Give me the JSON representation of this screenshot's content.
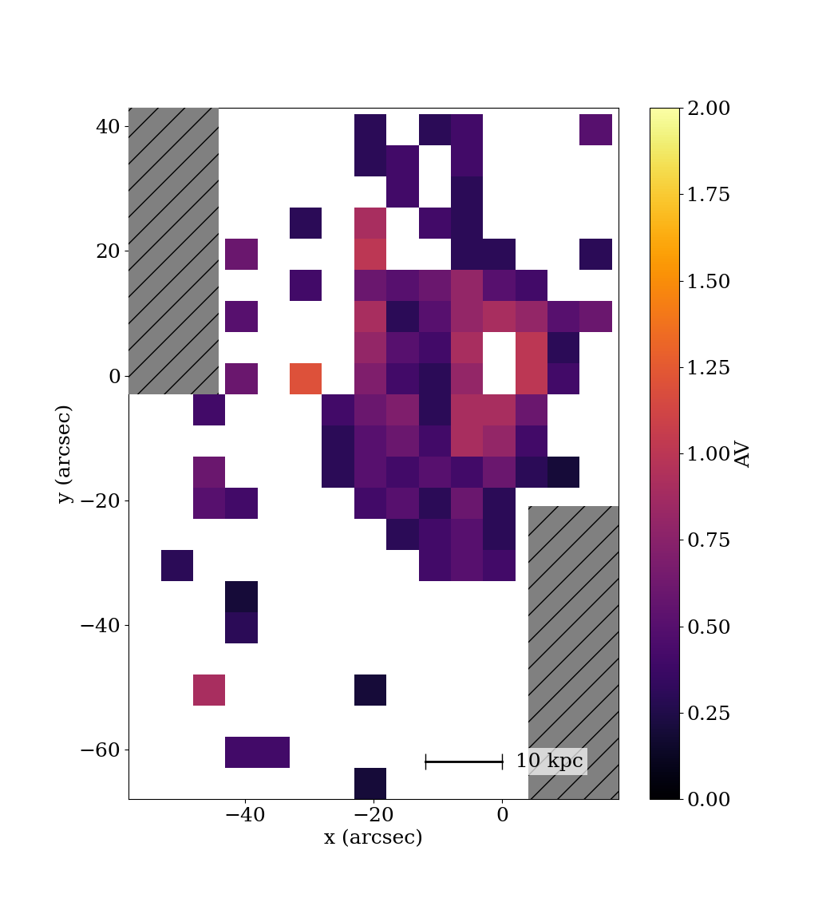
{
  "chart_data": {
    "type": "heatmap",
    "xlabel": "x (arcsec)",
    "ylabel": "y (arcsec)",
    "xlim": [
      -58,
      18
    ],
    "ylim": [
      -68,
      43
    ],
    "xticks": [
      {
        "value": -40,
        "label": "−40"
      },
      {
        "value": -20,
        "label": "−20"
      },
      0
    ],
    "yticks": [
      {
        "value": -60,
        "label": "−60"
      },
      {
        "value": -40,
        "label": "−40"
      },
      {
        "value": -20,
        "label": "−20"
      },
      0,
      20,
      40
    ],
    "x_edges": [
      -58,
      -53,
      -48,
      -43,
      -38,
      -33,
      -28,
      -23,
      -18,
      -13,
      -8,
      -3,
      2,
      7,
      12,
      17
    ],
    "y_edges": [
      -68,
      -63,
      -58,
      -53,
      -48,
      -43,
      -38,
      -33,
      -28,
      -23,
      -18,
      -13,
      -8,
      -3,
      2,
      7,
      12,
      17,
      22,
      27,
      32,
      37,
      42
    ],
    "cells": [
      [
        null,
        null,
        null,
        null,
        null,
        null,
        null,
        0.2,
        null,
        null,
        null,
        null,
        null,
        null,
        null
      ],
      [
        null,
        null,
        null,
        0.4,
        0.4,
        null,
        null,
        null,
        null,
        null,
        null,
        null,
        null,
        null,
        null
      ],
      [
        null,
        null,
        null,
        null,
        null,
        null,
        null,
        null,
        null,
        null,
        null,
        null,
        null,
        null,
        null
      ],
      [
        null,
        null,
        0.9,
        null,
        null,
        null,
        null,
        0.2,
        null,
        null,
        null,
        null,
        null,
        null,
        null
      ],
      [
        null,
        null,
        null,
        null,
        null,
        null,
        null,
        null,
        null,
        null,
        null,
        null,
        null,
        null,
        null
      ],
      [
        null,
        null,
        null,
        0.3,
        null,
        null,
        null,
        null,
        null,
        null,
        null,
        null,
        null,
        null,
        null
      ],
      [
        null,
        null,
        null,
        0.2,
        null,
        null,
        null,
        null,
        null,
        null,
        null,
        null,
        null,
        null,
        null
      ],
      [
        null,
        0.3,
        null,
        null,
        null,
        null,
        null,
        null,
        null,
        0.4,
        0.5,
        0.4,
        null,
        null,
        null
      ],
      [
        null,
        null,
        null,
        null,
        null,
        null,
        null,
        null,
        0.3,
        0.4,
        0.5,
        0.3,
        null,
        null,
        null
      ],
      [
        null,
        null,
        0.5,
        0.4,
        null,
        null,
        null,
        0.4,
        0.5,
        0.3,
        0.6,
        0.3,
        null,
        null,
        null
      ],
      [
        null,
        null,
        0.6,
        null,
        null,
        null,
        0.3,
        0.5,
        0.4,
        0.5,
        0.4,
        0.6,
        0.3,
        0.2,
        null
      ],
      [
        null,
        null,
        null,
        null,
        null,
        null,
        0.3,
        0.5,
        0.6,
        0.4,
        0.9,
        0.8,
        0.4,
        null,
        null
      ],
      [
        null,
        null,
        0.4,
        null,
        null,
        null,
        0.4,
        0.6,
        0.7,
        0.3,
        0.9,
        0.9,
        0.6,
        null,
        null
      ],
      [
        null,
        null,
        null,
        0.6,
        null,
        1.2,
        null,
        0.7,
        0.4,
        0.3,
        0.8,
        null,
        1.0,
        0.4,
        null
      ],
      [
        null,
        null,
        null,
        null,
        null,
        null,
        null,
        0.8,
        0.5,
        0.4,
        0.9,
        null,
        1.0,
        0.3,
        null
      ],
      [
        null,
        null,
        null,
        0.5,
        null,
        null,
        null,
        0.9,
        0.3,
        0.5,
        0.8,
        0.9,
        0.8,
        0.5,
        0.6
      ],
      [
        null,
        null,
        null,
        null,
        null,
        0.4,
        null,
        0.6,
        0.5,
        0.6,
        0.8,
        0.5,
        0.4,
        null,
        null
      ],
      [
        null,
        null,
        null,
        0.6,
        null,
        null,
        null,
        1.0,
        null,
        null,
        0.3,
        0.3,
        null,
        null,
        0.3
      ],
      [
        null,
        null,
        null,
        null,
        null,
        0.3,
        null,
        0.9,
        null,
        0.4,
        0.3,
        null,
        null,
        null,
        null
      ],
      [
        null,
        null,
        null,
        null,
        null,
        null,
        null,
        null,
        0.4,
        null,
        0.3,
        null,
        null,
        null,
        null
      ],
      [
        null,
        null,
        null,
        null,
        null,
        null,
        null,
        0.3,
        0.4,
        null,
        0.4,
        null,
        null,
        null,
        null
      ],
      [
        null,
        null,
        null,
        null,
        null,
        null,
        null,
        0.3,
        null,
        0.3,
        0.4,
        null,
        null,
        null,
        0.5
      ]
    ],
    "masked": [
      {
        "x": [
          -58,
          -44
        ],
        "y": [
          -3,
          43
        ]
      },
      {
        "x": [
          4,
          18
        ],
        "y": [
          -68,
          -21
        ]
      }
    ],
    "scale_bar": {
      "text": "10 kpc",
      "x": [
        -12,
        0
      ],
      "y": -62
    },
    "colorbar": {
      "label": "AV",
      "range": [
        0,
        2
      ],
      "ticks": [
        {
          "value": 0,
          "label": "0.00"
        },
        {
          "value": 0.25,
          "label": "0.25"
        },
        {
          "value": 0.5,
          "label": "0.50"
        },
        {
          "value": 0.75,
          "label": "0.75"
        },
        {
          "value": 1,
          "label": "1.00"
        },
        {
          "value": 1.25,
          "label": "1.25"
        },
        {
          "value": 1.5,
          "label": "1.50"
        },
        {
          "value": 1.75,
          "label": "1.75"
        },
        {
          "value": 2,
          "label": "2.00"
        }
      ]
    }
  }
}
